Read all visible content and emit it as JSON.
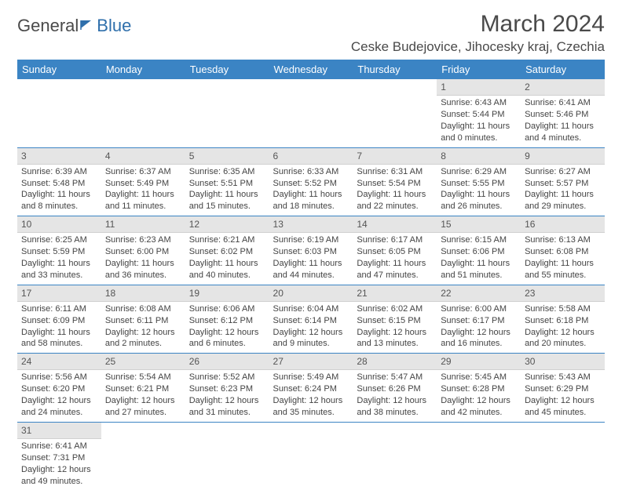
{
  "logo": {
    "part1": "General",
    "part2": "Blue"
  },
  "header": {
    "month_title": "March 2024",
    "location": "Ceske Budejovice, Jihocesky kraj, Czechia"
  },
  "colors": {
    "header_bg": "#3b84c4",
    "header_text": "#ffffff",
    "daynum_bg": "#e5e5e5",
    "cell_border": "#3b84c4",
    "text": "#444444"
  },
  "day_names": [
    "Sunday",
    "Monday",
    "Tuesday",
    "Wednesday",
    "Thursday",
    "Friday",
    "Saturday"
  ],
  "weeks": [
    [
      null,
      null,
      null,
      null,
      null,
      {
        "n": "1",
        "sunrise": "6:43 AM",
        "sunset": "5:44 PM",
        "daylight": "11 hours and 0 minutes."
      },
      {
        "n": "2",
        "sunrise": "6:41 AM",
        "sunset": "5:46 PM",
        "daylight": "11 hours and 4 minutes."
      }
    ],
    [
      {
        "n": "3",
        "sunrise": "6:39 AM",
        "sunset": "5:48 PM",
        "daylight": "11 hours and 8 minutes."
      },
      {
        "n": "4",
        "sunrise": "6:37 AM",
        "sunset": "5:49 PM",
        "daylight": "11 hours and 11 minutes."
      },
      {
        "n": "5",
        "sunrise": "6:35 AM",
        "sunset": "5:51 PM",
        "daylight": "11 hours and 15 minutes."
      },
      {
        "n": "6",
        "sunrise": "6:33 AM",
        "sunset": "5:52 PM",
        "daylight": "11 hours and 18 minutes."
      },
      {
        "n": "7",
        "sunrise": "6:31 AM",
        "sunset": "5:54 PM",
        "daylight": "11 hours and 22 minutes."
      },
      {
        "n": "8",
        "sunrise": "6:29 AM",
        "sunset": "5:55 PM",
        "daylight": "11 hours and 26 minutes."
      },
      {
        "n": "9",
        "sunrise": "6:27 AM",
        "sunset": "5:57 PM",
        "daylight": "11 hours and 29 minutes."
      }
    ],
    [
      {
        "n": "10",
        "sunrise": "6:25 AM",
        "sunset": "5:59 PM",
        "daylight": "11 hours and 33 minutes."
      },
      {
        "n": "11",
        "sunrise": "6:23 AM",
        "sunset": "6:00 PM",
        "daylight": "11 hours and 36 minutes."
      },
      {
        "n": "12",
        "sunrise": "6:21 AM",
        "sunset": "6:02 PM",
        "daylight": "11 hours and 40 minutes."
      },
      {
        "n": "13",
        "sunrise": "6:19 AM",
        "sunset": "6:03 PM",
        "daylight": "11 hours and 44 minutes."
      },
      {
        "n": "14",
        "sunrise": "6:17 AM",
        "sunset": "6:05 PM",
        "daylight": "11 hours and 47 minutes."
      },
      {
        "n": "15",
        "sunrise": "6:15 AM",
        "sunset": "6:06 PM",
        "daylight": "11 hours and 51 minutes."
      },
      {
        "n": "16",
        "sunrise": "6:13 AM",
        "sunset": "6:08 PM",
        "daylight": "11 hours and 55 minutes."
      }
    ],
    [
      {
        "n": "17",
        "sunrise": "6:11 AM",
        "sunset": "6:09 PM",
        "daylight": "11 hours and 58 minutes."
      },
      {
        "n": "18",
        "sunrise": "6:08 AM",
        "sunset": "6:11 PM",
        "daylight": "12 hours and 2 minutes."
      },
      {
        "n": "19",
        "sunrise": "6:06 AM",
        "sunset": "6:12 PM",
        "daylight": "12 hours and 6 minutes."
      },
      {
        "n": "20",
        "sunrise": "6:04 AM",
        "sunset": "6:14 PM",
        "daylight": "12 hours and 9 minutes."
      },
      {
        "n": "21",
        "sunrise": "6:02 AM",
        "sunset": "6:15 PM",
        "daylight": "12 hours and 13 minutes."
      },
      {
        "n": "22",
        "sunrise": "6:00 AM",
        "sunset": "6:17 PM",
        "daylight": "12 hours and 16 minutes."
      },
      {
        "n": "23",
        "sunrise": "5:58 AM",
        "sunset": "6:18 PM",
        "daylight": "12 hours and 20 minutes."
      }
    ],
    [
      {
        "n": "24",
        "sunrise": "5:56 AM",
        "sunset": "6:20 PM",
        "daylight": "12 hours and 24 minutes."
      },
      {
        "n": "25",
        "sunrise": "5:54 AM",
        "sunset": "6:21 PM",
        "daylight": "12 hours and 27 minutes."
      },
      {
        "n": "26",
        "sunrise": "5:52 AM",
        "sunset": "6:23 PM",
        "daylight": "12 hours and 31 minutes."
      },
      {
        "n": "27",
        "sunrise": "5:49 AM",
        "sunset": "6:24 PM",
        "daylight": "12 hours and 35 minutes."
      },
      {
        "n": "28",
        "sunrise": "5:47 AM",
        "sunset": "6:26 PM",
        "daylight": "12 hours and 38 minutes."
      },
      {
        "n": "29",
        "sunrise": "5:45 AM",
        "sunset": "6:28 PM",
        "daylight": "12 hours and 42 minutes."
      },
      {
        "n": "30",
        "sunrise": "5:43 AM",
        "sunset": "6:29 PM",
        "daylight": "12 hours and 45 minutes."
      }
    ],
    [
      {
        "n": "31",
        "sunrise": "6:41 AM",
        "sunset": "7:31 PM",
        "daylight": "12 hours and 49 minutes."
      },
      null,
      null,
      null,
      null,
      null,
      null
    ]
  ],
  "labels": {
    "sunrise_prefix": "Sunrise: ",
    "sunset_prefix": "Sunset: ",
    "daylight_prefix": "Daylight: "
  }
}
